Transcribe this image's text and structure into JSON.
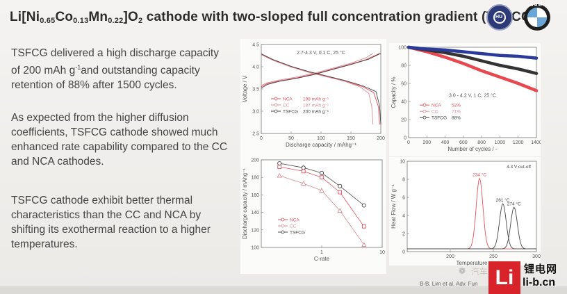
{
  "slide": {
    "title_parts": [
      "Li[Ni",
      "0.65",
      "Co",
      "0.13",
      "Mn",
      "0.22",
      "]O",
      "2",
      " cathode with two-sloped full concentration gradient (TSFCG)"
    ],
    "paragraph_1": [
      "TSFCG delivered a high discharge capacity",
      "of 200 mAh g",
      "-1",
      "and outstanding capacity",
      "retention of 88% after 1500 cycles."
    ],
    "paragraph_2": [
      "As expected from the higher diffusion",
      "coefficients, TSFCG cathode showed much",
      "enhanced rate capability compared to the CC",
      "and NCA cathodes."
    ],
    "paragraph_3": [
      "TSFCG cathode exhibit better thermal",
      "characteristics than the CC and NCA by",
      "shifting its exothermal reaction to a higher",
      "temperatures."
    ],
    "citation": "B-B. Lim et al. Adv. Fun",
    "logo_brand": "BMW",
    "watermark_text": "汽车",
    "li_logo_letter": "Li",
    "li_logo_cn": "锂电网",
    "li_logo_url": "li-b.cn"
  },
  "colors": {
    "nca": "#e0505a",
    "cc": "#d88c96",
    "tsfcg": "#444444",
    "cycle_blue": "#2a3a9a",
    "cycle_red": "#e84850",
    "cycle_dark": "#333333"
  },
  "chart_data": [
    {
      "type": "line",
      "condition": "2.7-4.3 V, 0.1 C, 25 °C",
      "xlabel": "Discharge capacity / mAhg⁻¹",
      "ylabel": "Voltage / V",
      "xlim": [
        0,
        200
      ],
      "ylim": [
        2.5,
        4.5
      ],
      "xticks": [
        "0",
        "50",
        "100",
        "150",
        "200"
      ],
      "yticks": [
        "2.5",
        "3.0",
        "3.5",
        "4.0",
        "4.5"
      ],
      "legend": [
        {
          "name": "NCA",
          "value": "198 mAh g⁻¹"
        },
        {
          "name": "CC",
          "value": "187 mAh g⁻¹"
        },
        {
          "name": "TSFCG",
          "value": "200 mAh g⁻¹"
        }
      ],
      "series": [
        {
          "name": "NCA charge",
          "points": [
            [
              0,
              3.55
            ],
            [
              10,
              3.62
            ],
            [
              30,
              3.68
            ],
            [
              60,
              3.75
            ],
            [
              90,
              3.84
            ],
            [
              120,
              3.95
            ],
            [
              150,
              4.06
            ],
            [
              175,
              4.16
            ],
            [
              198,
              4.3
            ]
          ]
        },
        {
          "name": "NCA discharge",
          "points": [
            [
              0,
              4.28
            ],
            [
              20,
              4.15
            ],
            [
              50,
              4.0
            ],
            [
              80,
              3.88
            ],
            [
              110,
              3.78
            ],
            [
              140,
              3.68
            ],
            [
              170,
              3.55
            ],
            [
              188,
              3.42
            ],
            [
              196,
              3.1
            ],
            [
              198,
              2.7
            ]
          ]
        },
        {
          "name": "CC charge",
          "points": [
            [
              0,
              3.58
            ],
            [
              10,
              3.64
            ],
            [
              30,
              3.7
            ],
            [
              60,
              3.77
            ],
            [
              90,
              3.86
            ],
            [
              120,
              3.97
            ],
            [
              150,
              4.08
            ],
            [
              175,
              4.2
            ],
            [
              187,
              4.3
            ]
          ]
        },
        {
          "name": "CC discharge",
          "points": [
            [
              0,
              4.27
            ],
            [
              20,
              4.14
            ],
            [
              50,
              3.99
            ],
            [
              80,
              3.87
            ],
            [
              110,
              3.77
            ],
            [
              140,
              3.67
            ],
            [
              165,
              3.55
            ],
            [
              180,
              3.4
            ],
            [
              185,
              3.1
            ],
            [
              187,
              2.7
            ]
          ]
        },
        {
          "name": "TSFCG charge",
          "points": [
            [
              0,
              3.52
            ],
            [
              10,
              3.6
            ],
            [
              30,
              3.67
            ],
            [
              60,
              3.74
            ],
            [
              90,
              3.83
            ],
            [
              120,
              3.94
            ],
            [
              150,
              4.05
            ],
            [
              180,
              4.17
            ],
            [
              200,
              4.3
            ]
          ]
        },
        {
          "name": "TSFCG discharge",
          "points": [
            [
              0,
              4.29
            ],
            [
              20,
              4.16
            ],
            [
              50,
              4.01
            ],
            [
              80,
              3.89
            ],
            [
              110,
              3.79
            ],
            [
              140,
              3.69
            ],
            [
              170,
              3.57
            ],
            [
              192,
              3.44
            ],
            [
              198,
              3.12
            ],
            [
              200,
              2.7
            ]
          ]
        }
      ]
    },
    {
      "type": "line",
      "condition": "3.0 - 4.2 V, 1 C, 25 °C",
      "xlabel": "Number of cycles / -",
      "ylabel": "Capacity / %",
      "xlim": [
        0,
        1400
      ],
      "ylim": [
        0,
        100
      ],
      "xticks": [
        "0",
        "200",
        "400",
        "600",
        "800",
        "1000",
        "1200",
        "1400"
      ],
      "yticks": [
        "0",
        "20",
        "40",
        "60",
        "80",
        "100"
      ],
      "legend": [
        {
          "name": "NCA",
          "value": "52%"
        },
        {
          "name": "CC",
          "value": "71%"
        },
        {
          "name": "TSFCG",
          "value": "88%"
        }
      ],
      "series": [
        {
          "name": "NCA",
          "x": [
            0,
            200,
            400,
            600,
            800,
            1000,
            1200,
            1400
          ],
          "values": [
            100,
            95,
            89,
            82,
            74,
            67,
            60,
            52
          ]
        },
        {
          "name": "CC",
          "x": [
            0,
            200,
            400,
            600,
            800,
            1000,
            1200,
            1400
          ],
          "values": [
            100,
            97,
            94,
            90,
            85,
            80,
            76,
            71
          ]
        },
        {
          "name": "TSFCG",
          "x": [
            0,
            200,
            400,
            600,
            800,
            1000,
            1200,
            1400
          ],
          "values": [
            100,
            98,
            97,
            95,
            93,
            91,
            90,
            88
          ]
        }
      ]
    },
    {
      "type": "scatter",
      "xlabel": "C-rate",
      "ylabel": "Discharge capacity / mAhg⁻¹",
      "xscale": "log",
      "xlim": [
        0.1,
        10
      ],
      "ylim": [
        100,
        200
      ],
      "xticks": [
        "1",
        "10"
      ],
      "yticks": [
        "100",
        "120",
        "140",
        "160",
        "180",
        "200"
      ],
      "legend": [
        "NCA",
        "CC",
        "TSFCG"
      ],
      "series": [
        {
          "name": "TSFCG",
          "x": [
            0.2,
            0.5,
            1,
            2,
            5
          ],
          "values": [
            196,
            191,
            185,
            170,
            148
          ]
        },
        {
          "name": "NCA",
          "x": [
            0.2,
            0.5,
            1,
            2,
            5
          ],
          "values": [
            192,
            187,
            180,
            163,
            124
          ]
        },
        {
          "name": "CC",
          "x": [
            0.2,
            0.5,
            1,
            2,
            5
          ],
          "values": [
            182,
            173,
            165,
            142,
            103
          ]
        }
      ]
    },
    {
      "type": "line",
      "condition": "4.3 V cut-off",
      "xlabel": "Temperature",
      "ylabel": "Heat Flow / W g⁻¹",
      "xlim": [
        150,
        300
      ],
      "ylim": [
        0,
        10
      ],
      "xticks": [
        "200",
        "250",
        "300"
      ],
      "yticks": [
        "0",
        "2",
        "4",
        "6",
        "8",
        "10"
      ],
      "peaks": [
        {
          "name": "NCA",
          "label": "234 °C",
          "x": 234,
          "height": 7.8
        },
        {
          "name": "CC",
          "label": "261 °C",
          "x": 261,
          "height": 5.0
        },
        {
          "name": "TSFCG",
          "label": "274 °C",
          "x": 274,
          "height": 4.6
        }
      ]
    }
  ]
}
